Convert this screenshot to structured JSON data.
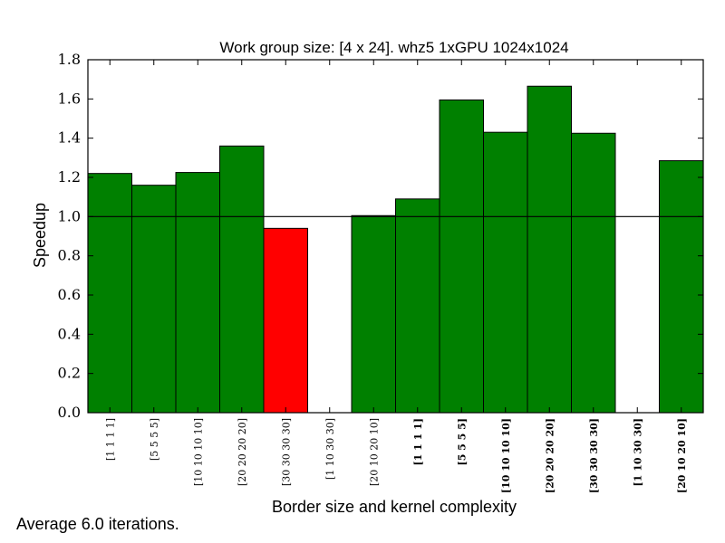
{
  "chart_data": {
    "type": "bar",
    "title": "Work group size: [4 x 24]. whz5 1xGPU 1024x1024",
    "xlabel": "Border size and kernel complexity",
    "ylabel": "Speedup",
    "ylim": [
      0.0,
      1.8
    ],
    "yticks": [
      "0.0",
      "0.2",
      "0.4",
      "0.6",
      "0.8",
      "1.0",
      "1.2",
      "1.4",
      "1.6",
      "1.8"
    ],
    "reference_line": 1.0,
    "grid": false,
    "categories": [
      {
        "label": "[1 1 1 1]",
        "bold": false
      },
      {
        "label": "[5 5 5 5]",
        "bold": false
      },
      {
        "label": "[10 10 10 10]",
        "bold": false
      },
      {
        "label": "[20 20 20 20]",
        "bold": false
      },
      {
        "label": "[30 30 30 30]",
        "bold": false
      },
      {
        "label": "[1 10 30 30]",
        "bold": false
      },
      {
        "label": "[20 10 20 10]",
        "bold": false
      },
      {
        "label": "[1 1 1 1]",
        "bold": true
      },
      {
        "label": "[5 5 5 5]",
        "bold": true
      },
      {
        "label": "[10 10 10 10]",
        "bold": true
      },
      {
        "label": "[20 20 20 20]",
        "bold": true
      },
      {
        "label": "[30 30 30 30]",
        "bold": true
      },
      {
        "label": "[1 10 30 30]",
        "bold": true
      },
      {
        "label": "[20 10 20 10]",
        "bold": true
      }
    ],
    "values": [
      1.22,
      1.16,
      1.225,
      1.36,
      0.94,
      0.0,
      1.005,
      1.09,
      1.595,
      1.43,
      1.665,
      1.425,
      0.0,
      1.285
    ],
    "colors": {
      "above": "#008000",
      "below": "#ff0000",
      "edge": "#000000"
    }
  },
  "footnote": "Average 6.0 iterations."
}
